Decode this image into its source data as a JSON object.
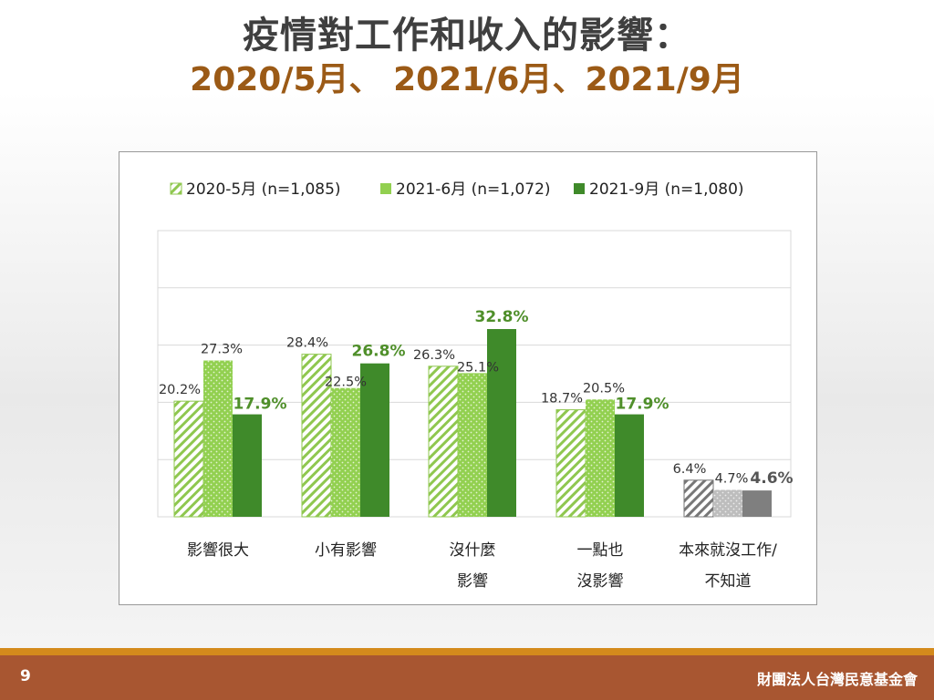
{
  "title": {
    "line1": "疫情對工作和收入的影響：",
    "line2": "2020/5月、 2021/6月、2021/9月"
  },
  "chart_data": {
    "type": "bar",
    "categories": [
      [
        "影響很大"
      ],
      [
        "小有影響"
      ],
      [
        "沒什麼",
        "影響"
      ],
      [
        "一點也",
        "沒影響"
      ],
      [
        "本來就沒工作/",
        "不知道"
      ]
    ],
    "series": [
      {
        "name": "2020-5月 (n=1,085)",
        "values": [
          20.2,
          28.4,
          26.3,
          18.7,
          6.4
        ]
      },
      {
        "name": "2021-6月 (n=1,072)",
        "values": [
          27.3,
          22.5,
          25.1,
          20.5,
          4.7
        ]
      },
      {
        "name": "2021-9月 (n=1,080)",
        "values": [
          17.9,
          26.8,
          32.8,
          17.9,
          4.6
        ]
      }
    ],
    "value_labels": [
      [
        "20.2%",
        "28.4%",
        "26.3%",
        "18.7%",
        "6.4%"
      ],
      [
        "27.3%",
        "22.5%",
        "25.1%",
        "20.5%",
        "4.7%"
      ],
      [
        "17.9%",
        "26.8%",
        "32.8%",
        "17.9%",
        "4.6%"
      ]
    ],
    "ylim": [
      0,
      50
    ],
    "grid": true,
    "legend_position": "top",
    "colors": {
      "series1": "#8fc74f",
      "series2": "#92d050",
      "series3": "#3f8a2a",
      "last_category": [
        "#777777",
        "#bdbdbd",
        "#7f7f7f"
      ],
      "highlight_label": "#4f8f2a"
    }
  },
  "footer": {
    "page_number": "9",
    "organization": "財團法人台灣民意基金會"
  }
}
